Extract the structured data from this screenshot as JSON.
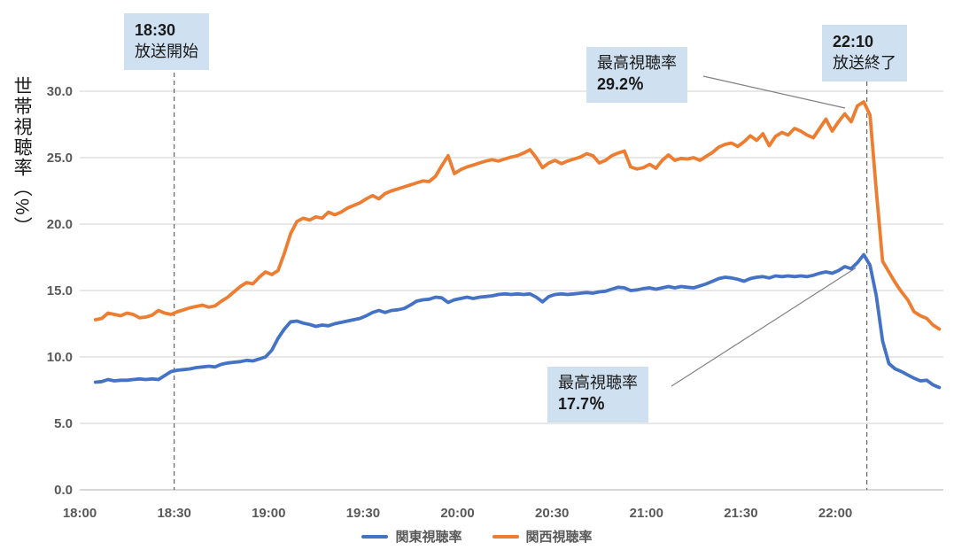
{
  "chart_data": {
    "type": "line",
    "title": "",
    "ylabel": "世帯視聴率（%）",
    "xlabel": "",
    "ylim": [
      0.0,
      30.0
    ],
    "y_tick_step": 5.0,
    "y_tick_labels": [
      "0.0",
      "5.0",
      "10.0",
      "15.0",
      "20.0",
      "25.0",
      "30.0"
    ],
    "x_tick_labels": [
      "18:00",
      "18:30",
      "19:00",
      "19:30",
      "20:00",
      "20:30",
      "21:00",
      "21:30",
      "22:00"
    ],
    "x_tick_minutes": [
      0,
      30,
      60,
      90,
      120,
      150,
      180,
      210,
      240
    ],
    "xlim_minutes": [
      0,
      274
    ],
    "grid": "horizontal",
    "legend_position": "bottom",
    "sample_start_minute_after_1800": 5,
    "sample_step_minutes": 2,
    "series": [
      {
        "name": "関東視聴率",
        "color": "#4472C4",
        "values": [
          8.1,
          8.15,
          8.3,
          8.2,
          8.25,
          8.25,
          8.3,
          8.35,
          8.3,
          8.35,
          8.3,
          8.6,
          8.9,
          9.0,
          9.05,
          9.1,
          9.2,
          9.25,
          9.3,
          9.25,
          9.45,
          9.55,
          9.6,
          9.65,
          9.75,
          9.7,
          9.85,
          10.0,
          10.5,
          11.4,
          12.1,
          12.65,
          12.7,
          12.55,
          12.45,
          12.3,
          12.4,
          12.35,
          12.5,
          12.6,
          12.7,
          12.8,
          12.9,
          13.1,
          13.35,
          13.5,
          13.35,
          13.5,
          13.55,
          13.65,
          13.9,
          14.2,
          14.3,
          14.35,
          14.5,
          14.45,
          14.1,
          14.3,
          14.4,
          14.5,
          14.4,
          14.5,
          14.55,
          14.6,
          14.7,
          14.75,
          14.7,
          14.75,
          14.7,
          14.75,
          14.5,
          14.15,
          14.55,
          14.7,
          14.75,
          14.7,
          14.75,
          14.8,
          14.85,
          14.8,
          14.9,
          14.95,
          15.1,
          15.25,
          15.2,
          15.0,
          15.05,
          15.15,
          15.2,
          15.1,
          15.2,
          15.3,
          15.2,
          15.3,
          15.25,
          15.2,
          15.35,
          15.5,
          15.7,
          15.9,
          16.0,
          15.95,
          15.85,
          15.7,
          15.9,
          16.0,
          16.05,
          15.95,
          16.1,
          16.05,
          16.1,
          16.05,
          16.1,
          16.05,
          16.15,
          16.3,
          16.4,
          16.3,
          16.5,
          16.8,
          16.65,
          17.1,
          17.7,
          16.9,
          14.6,
          11.2,
          9.5,
          9.1,
          8.9,
          8.65,
          8.4,
          8.2,
          8.25,
          7.9,
          7.7
        ]
      },
      {
        "name": "関西視聴率",
        "color": "#ED7D31",
        "values": [
          12.8,
          12.9,
          13.3,
          13.2,
          13.1,
          13.3,
          13.2,
          12.95,
          13.0,
          13.15,
          13.5,
          13.3,
          13.2,
          13.4,
          13.55,
          13.7,
          13.8,
          13.9,
          13.75,
          13.85,
          14.2,
          14.5,
          14.9,
          15.3,
          15.6,
          15.5,
          16.0,
          16.4,
          16.2,
          16.5,
          17.8,
          19.3,
          20.2,
          20.45,
          20.3,
          20.55,
          20.45,
          20.9,
          20.7,
          20.9,
          21.2,
          21.4,
          21.6,
          21.9,
          22.15,
          21.9,
          22.3,
          22.5,
          22.65,
          22.8,
          22.95,
          23.1,
          23.25,
          23.2,
          23.6,
          24.4,
          25.15,
          23.8,
          24.1,
          24.3,
          24.45,
          24.6,
          24.75,
          24.85,
          24.75,
          24.9,
          25.05,
          25.15,
          25.35,
          25.6,
          25.0,
          24.25,
          24.6,
          24.8,
          24.55,
          24.75,
          24.9,
          25.05,
          25.3,
          25.15,
          24.6,
          24.8,
          25.15,
          25.35,
          25.5,
          24.3,
          24.15,
          24.25,
          24.5,
          24.2,
          24.8,
          25.2,
          24.8,
          24.95,
          24.9,
          25.0,
          24.8,
          25.1,
          25.4,
          25.8,
          26.0,
          26.1,
          25.85,
          26.2,
          26.65,
          26.3,
          26.8,
          25.9,
          26.6,
          26.9,
          26.7,
          27.2,
          27.0,
          26.7,
          26.5,
          27.2,
          27.9,
          27.0,
          27.7,
          28.3,
          27.7,
          28.9,
          29.2,
          28.2,
          22.5,
          17.2,
          16.4,
          15.6,
          14.9,
          14.3,
          13.4,
          13.1,
          12.9,
          12.4,
          12.1
        ]
      }
    ]
  },
  "annotations": {
    "broadcast_start": {
      "time": "18:30",
      "label": "放送開始",
      "time_minutes": 30
    },
    "broadcast_end": {
      "time": "22:10",
      "label": "放送終了",
      "time_minutes": 250
    },
    "kansai_peak": {
      "label": "最高視聴率",
      "value": "29.2％",
      "peak_minute": 249,
      "peak_value": 29.2
    },
    "kanto_peak": {
      "label": "最高視聴率",
      "value": "17.7％",
      "peak_minute": 249,
      "peak_value": 17.7
    }
  },
  "colors": {
    "kanto_line": "#4472C4",
    "kansai_line": "#ED7D31",
    "gridline": "#D9D9D9",
    "axis_line": "#BFBFBF",
    "tick_text": "#595959",
    "annotation_bg": "#CFE0F1",
    "dashed_line": "#666666",
    "callout_line": "#808080"
  }
}
